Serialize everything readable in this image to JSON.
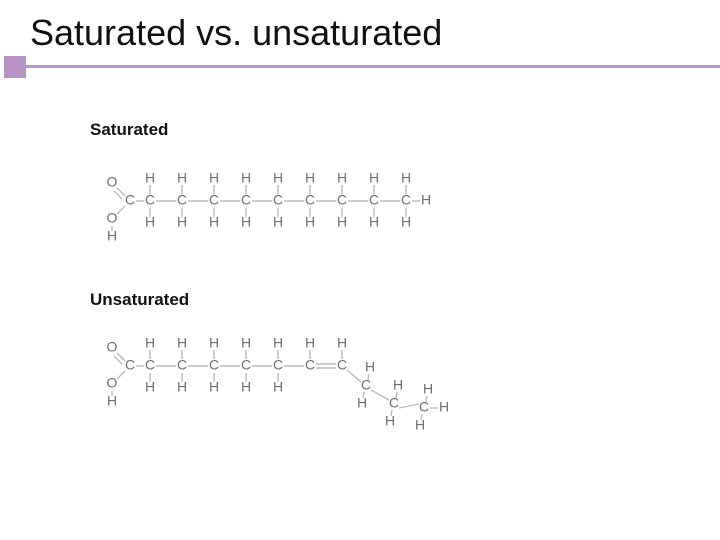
{
  "title": "Saturated vs. unsaturated",
  "accent": {
    "square_color": "#b893c5",
    "line_color": "#b893c5"
  },
  "labels": {
    "saturated": "Saturated",
    "unsaturated": "Unsaturated"
  },
  "atoms": {
    "C": "C",
    "H": "H",
    "O": "O"
  },
  "style": {
    "atom_color": "#6e6f72",
    "bond_color": "#b9bbbf",
    "atom_fontsize": 14,
    "label_fontsize": 17,
    "chain_spacing": 32,
    "vertical_bond_len": 14,
    "saturated_chain_len": 9,
    "unsaturated_straight_len": 6,
    "double_bond_after": 6
  }
}
